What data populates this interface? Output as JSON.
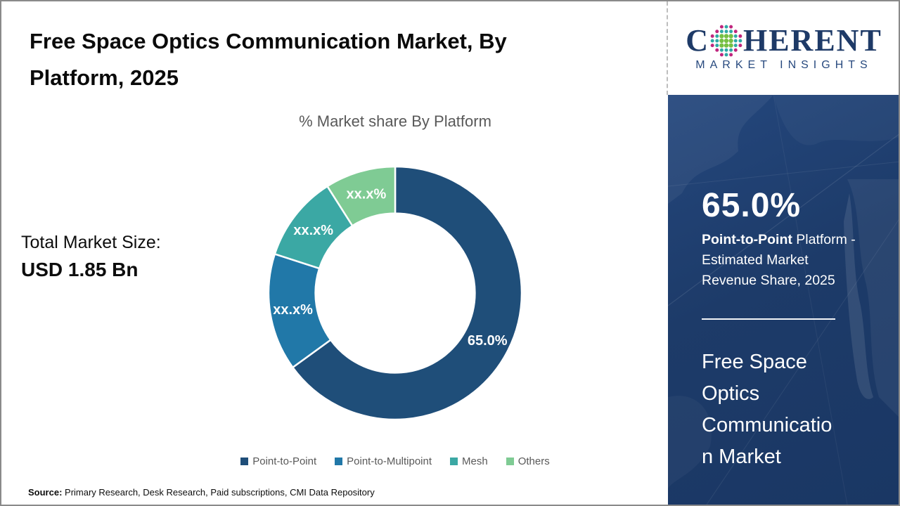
{
  "canvas": {
    "border_color": "#8A8A8A",
    "background": "#FFFFFF"
  },
  "header": {
    "title_lines": [
      "Free Space Optics Communication Market, By",
      "Platform, 2025"
    ],
    "title_color": "#0A0A0A"
  },
  "logo": {
    "brand_c": "C",
    "brand_rest": "HERENT",
    "tagline": "MARKET INSIGHTS",
    "navy": "#1E3A67",
    "dot_teal": "#2FA8A6",
    "dot_green": "#76C043",
    "dot_magenta": "#C0267E"
  },
  "left_stat": {
    "label": "Total Market Size:",
    "value": "USD 1.85 Bn"
  },
  "chart_data": {
    "type": "pie",
    "subtype": "donut",
    "title": "% Market share By Platform",
    "categories": [
      "Point-to-Point",
      "Point-to-Multipoint",
      "Mesh",
      "Others"
    ],
    "values": [
      65.0,
      15.0,
      11.0,
      9.0
    ],
    "labels": [
      "65.0%",
      "xx.x%",
      "xx.x%",
      "xx.x%"
    ],
    "colors": [
      "#1F4E79",
      "#2178A8",
      "#3BA8A4",
      "#7FCB94"
    ],
    "start_angle_deg": 0,
    "direction": "clockwise",
    "inner_radius_ratio": 0.63,
    "separator_color": "#FFFFFF",
    "label_color": "#FFFFFF",
    "title_color": "#595959",
    "legend_position": "bottom",
    "legend_text_color": "#595959"
  },
  "sidebar": {
    "background": "#1D3B69",
    "stat_value": "65.0%",
    "caption": {
      "bold": "Point-to-Point",
      "line1_rest": " Platform -",
      "line2": "Estimated Market",
      "line3": "Revenue Share, 2025"
    },
    "market_name_lines": [
      "Free Space",
      "Optics",
      "Communicatio",
      "n Market"
    ]
  },
  "footer": {
    "source_label": "Source:",
    "source_text": " Primary Research, Desk Research, Paid subscriptions, CMI Data Repository"
  }
}
